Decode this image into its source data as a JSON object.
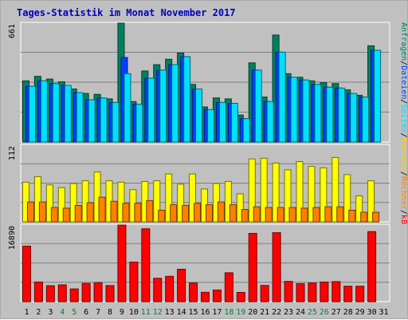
{
  "chart_data": {
    "type": "bar",
    "title": "Tages-Statistik im Monat November 2017",
    "x": [
      "1",
      "2",
      "3",
      "4",
      "5",
      "6",
      "7",
      "8",
      "9",
      "10",
      "11",
      "12",
      "13",
      "14",
      "15",
      "16",
      "17",
      "18",
      "19",
      "20",
      "21",
      "22",
      "23",
      "24",
      "25",
      "26",
      "27",
      "28",
      "29",
      "30",
      "31"
    ],
    "weekend_days": [
      "4",
      "5",
      "11",
      "12",
      "18",
      "19",
      "25",
      "26"
    ],
    "panels": [
      {
        "name": "top",
        "ymax_label": "661",
        "ylim": [
          0,
          661
        ],
        "series": [
          {
            "name": "Anfragen",
            "color": "#008060",
            "values": [
              340,
              365,
              350,
              335,
              295,
              270,
              265,
              240,
              661,
              225,
              395,
              430,
              460,
              495,
              320,
              195,
              245,
              240,
              150,
              440,
              250,
              595,
              380,
              360,
              340,
              330,
              325,
              290,
              260,
              535,
              0
            ]
          },
          {
            "name": "Dateien",
            "color": "#0040ff",
            "values": [
              310,
              340,
              325,
              315,
              275,
              235,
              245,
              220,
              470,
              210,
              355,
              400,
              430,
              475,
              295,
              180,
              220,
              215,
              130,
              400,
              225,
              500,
              360,
              345,
              320,
              305,
              300,
              270,
              250,
              510,
              0
            ]
          },
          {
            "name": "Seiten",
            "color": "#00e0ff",
            "values": [
              310,
              340,
              325,
              315,
              275,
              235,
              245,
              220,
              380,
              210,
              355,
              400,
              430,
              475,
              295,
              180,
              220,
              215,
              130,
              400,
              225,
              500,
              360,
              345,
              320,
              305,
              300,
              270,
              250,
              510,
              0
            ]
          }
        ]
      },
      {
        "name": "middle",
        "ymax_label": "112",
        "ylim": [
          0,
          112
        ],
        "series": [
          {
            "name": "Besuche",
            "color": "#ffff00",
            "values": [
              58,
              66,
              54,
              50,
              56,
              60,
              73,
              60,
              58,
              47,
              59,
              60,
              70,
              55,
              70,
              48,
              56,
              59,
              41,
              92,
              93,
              86,
              76,
              88,
              81,
              79,
              94,
              69,
              38,
              60,
              0
            ]
          },
          {
            "name": "Rechner",
            "color": "#ff8000",
            "values": [
              29,
              29,
              21,
              20,
              24,
              28,
              36,
              30,
              27,
              27,
              31,
              17,
              25,
              24,
              27,
              25,
              29,
              25,
              18,
              22,
              21,
              21,
              21,
              20,
              21,
              22,
              22,
              17,
              14,
              14,
              0
            ]
          }
        ]
      },
      {
        "name": "bottom",
        "ymax_label": "16890",
        "ylim": [
          0,
          16890
        ],
        "series": [
          {
            "name": "kB",
            "color": "#ff0000",
            "values": [
              12240,
              4330,
              3510,
              3700,
              2800,
              4020,
              4180,
              3540,
              16890,
              8730,
              16060,
              5150,
              5580,
              7150,
              4120,
              2060,
              2570,
              6360,
              2030,
              15050,
              3570,
              15200,
              4460,
              3970,
              4100,
              4330,
              4420,
              3400,
              3400,
              15440,
              0
            ]
          }
        ]
      }
    ],
    "right_labels": [
      {
        "text": "Anfragen",
        "color": "#008060"
      },
      {
        "text": "/",
        "color": "#000000"
      },
      {
        "text": "Dateien",
        "color": "#0040ff"
      },
      {
        "text": "/",
        "color": "#000000"
      },
      {
        "text": "Seiten",
        "color": "#00e0ff"
      },
      {
        "text": "/",
        "color": "#000000"
      },
      {
        "text": "Besuche",
        "color": "#ffd000"
      },
      {
        "text": "/",
        "color": "#000000"
      },
      {
        "text": "Rechner",
        "color": "#ff8000"
      },
      {
        "text": "/",
        "color": "#000000"
      },
      {
        "text": "kB",
        "color": "#ff0000"
      }
    ],
    "grid": true
  },
  "colors": {
    "background": "#c0c0c0",
    "title": "#0000c0",
    "weekday_label": "#000000",
    "weekend_label": "#008040",
    "gridline": "#808080"
  }
}
